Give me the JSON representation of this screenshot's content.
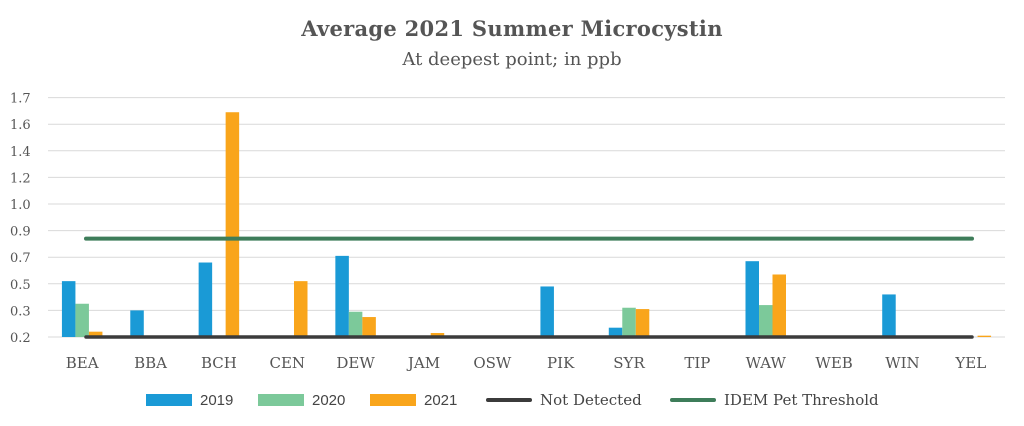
{
  "title": "Average 2021 Summer Microcystin",
  "subtitle": "At deepest point; in ppb",
  "colors": {
    "s2019": "#1a9ad6",
    "s2020": "#7cc99a",
    "s2021": "#f9a51b",
    "not_detected": "#3b3b3b",
    "threshold": "#3e7d5a",
    "grid": "#d9d9d9",
    "text": "#555555"
  },
  "legend": {
    "s2019": "2019",
    "s2020": "2020",
    "s2021": "2021",
    "not_detected": "Not Detected",
    "threshold": "IDEM Pet Threshold"
  },
  "chart_data": {
    "type": "bar",
    "title": "Average 2021 Summer Microcystin",
    "subtitle": "At deepest point; in ppb",
    "categories": [
      "BEA",
      "BBA",
      "BCH",
      "CEN",
      "DEW",
      "JAM",
      "OSW",
      "PIK",
      "SYR",
      "TIP",
      "WAW",
      "WEB",
      "WIN",
      "YEL"
    ],
    "y_tick_labels": [
      "0.2",
      "0.3",
      "0.5",
      "0.7",
      "0.9",
      "1.0",
      "1.2",
      "1.4",
      "1.6",
      "1.7"
    ],
    "y_axis_note": "tick labels are unevenly spaced; bar values below are read in tick-index units (0 = first tick label, 9 = last)",
    "ylim": [
      0,
      9
    ],
    "series": [
      {
        "name": "2019",
        "values": [
          2.1,
          1.0,
          2.8,
          null,
          3.05,
          null,
          null,
          1.9,
          0.35,
          null,
          2.85,
          null,
          1.6,
          null
        ]
      },
      {
        "name": "2020",
        "values": [
          1.25,
          null,
          null,
          null,
          0.95,
          null,
          null,
          null,
          1.1,
          null,
          1.2,
          null,
          null,
          null
        ]
      },
      {
        "name": "2021",
        "values": [
          0.2,
          null,
          8.45,
          2.1,
          0.75,
          0.15,
          null,
          null,
          1.05,
          null,
          2.35,
          null,
          null,
          0.05
        ]
      }
    ],
    "lines": [
      {
        "name": "Not Detected",
        "value": 0
      },
      {
        "name": "IDEM Pet Threshold",
        "value": 3.7
      }
    ],
    "legend_position": "bottom",
    "grid": true
  }
}
